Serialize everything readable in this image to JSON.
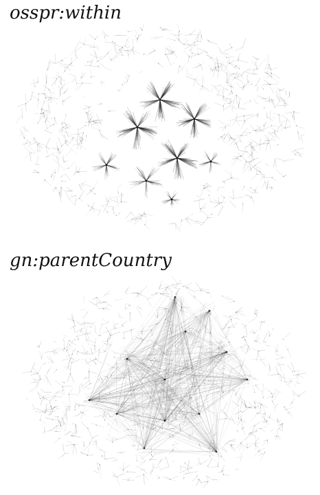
{
  "figure": {
    "panels": [
      {
        "id": "top",
        "title": "osspr:within",
        "structure": "clustered-stars"
      },
      {
        "id": "bottom",
        "title": "gn:parentCountry",
        "structure": "hub-and-spoke"
      }
    ],
    "colors": {
      "background": "#ffffff",
      "edge": "#222222",
      "node": "#111111"
    }
  }
}
